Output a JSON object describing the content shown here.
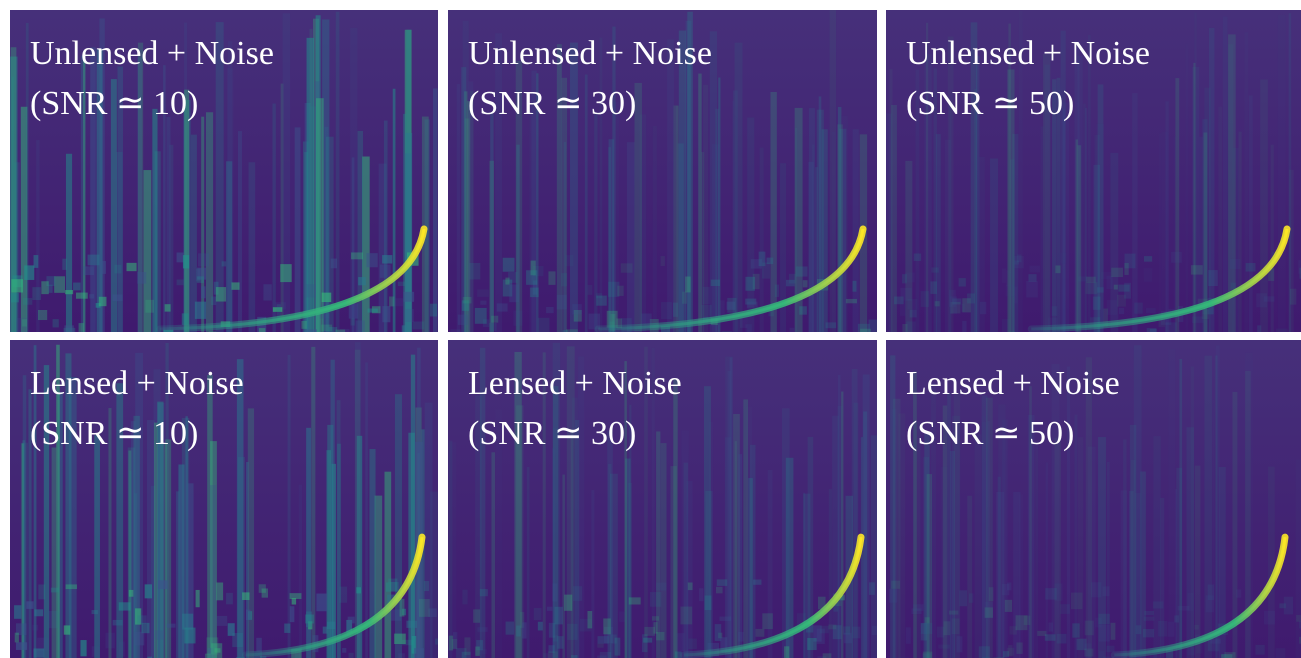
{
  "panels": [
    {
      "line1": "Unlensed + Noise",
      "line2": "(SNR ≃ 10)"
    },
    {
      "line1": "Unlensed + Noise",
      "line2": "(SNR ≃ 30)"
    },
    {
      "line1": "Unlensed + Noise",
      "line2": "(SNR ≃ 50)"
    },
    {
      "line1": "Lensed + Noise",
      "line2": "(SNR ≃ 10)"
    },
    {
      "line1": "Lensed + Noise",
      "line2": "(SNR ≃ 30)"
    },
    {
      "line1": "Lensed + Noise",
      "line2": "(SNR ≃ 50)"
    }
  ]
}
